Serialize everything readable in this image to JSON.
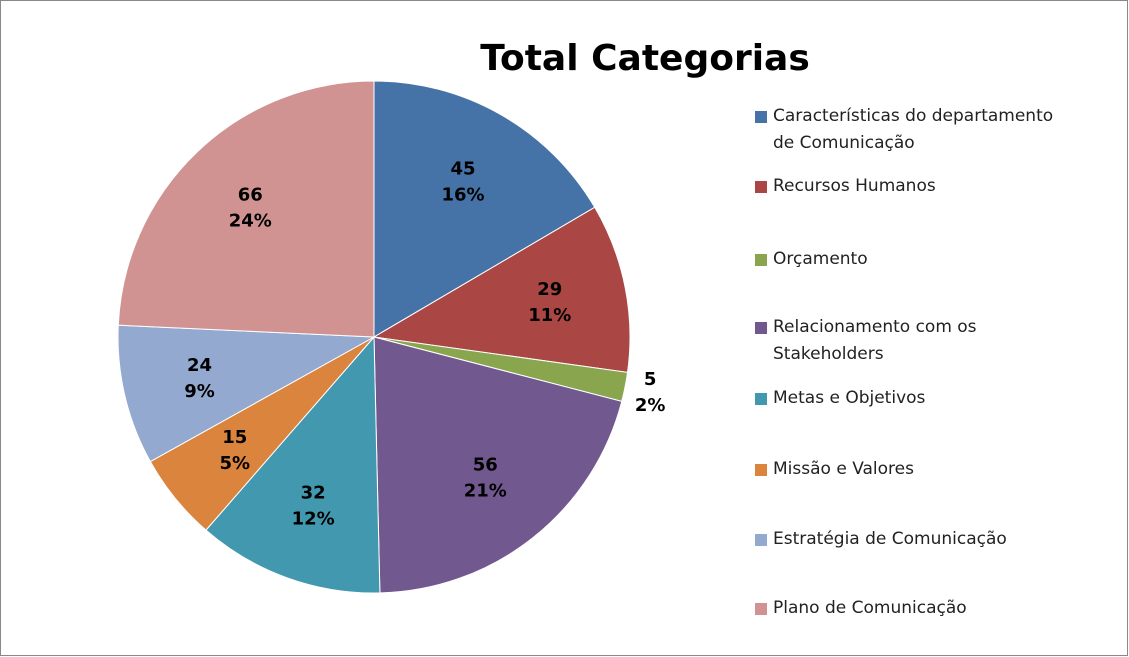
{
  "chart_data": {
    "type": "pie",
    "title": "Total Categorias",
    "categories": [
      "Características do departamento de Comunicação",
      "Recursos Humanos",
      "Orçamento",
      "Relacionamento com os Stakeholders",
      "Metas e Objetivos",
      "Missão e Valores",
      "Estratégia de Comunicação",
      "Plano de Comunicação"
    ],
    "values": [
      45,
      29,
      5,
      56,
      32,
      15,
      24,
      66
    ],
    "percent_labels": [
      "16%",
      "11%",
      "2%",
      "21%",
      "12%",
      "5%",
      "9%",
      "24%"
    ],
    "colors": [
      "#4572a7",
      "#aa4643",
      "#89a54e",
      "#71588f",
      "#4198af",
      "#db843d",
      "#93a9cf",
      "#d19392"
    ],
    "legend": "right"
  }
}
